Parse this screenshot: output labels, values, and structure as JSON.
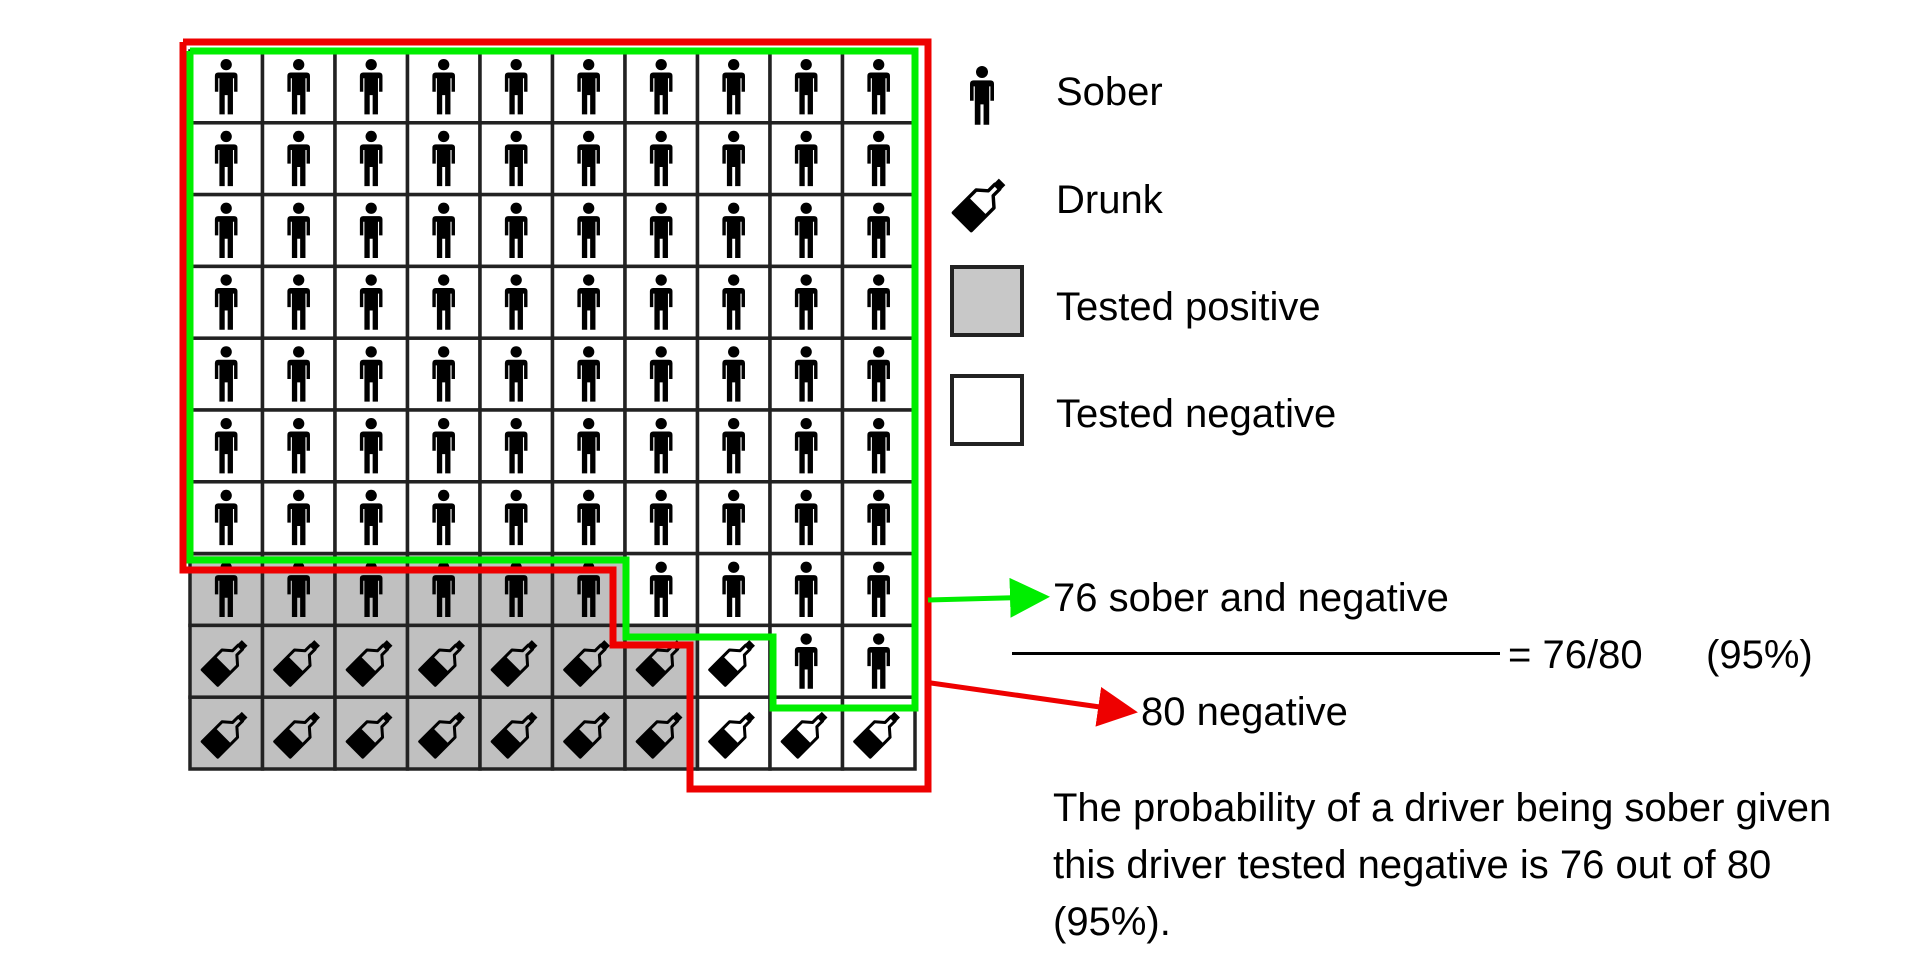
{
  "grid": {
    "rows": 10,
    "cols": 10,
    "colors": {
      "positive": "#c0c0c0",
      "negative": "#ffffff",
      "border": "#222222"
    },
    "row_codes": [
      "SN SN SN SN SN SN SN SN SN SN",
      "SN SN SN SN SN SN SN SN SN SN",
      "SN SN SN SN SN SN SN SN SN SN",
      "SN SN SN SN SN SN SN SN SN SN",
      "SN SN SN SN SN SN SN SN SN SN",
      "SN SN SN SN SN SN SN SN SN SN",
      "SN SN SN SN SN SN SN SN SN SN",
      "SP SP SP SP SP SP SN SN SN SN",
      "DP DP DP DP DP DP DP DN SN SN",
      "DP DP DP DP DP DP DP DN DN DN"
    ],
    "code_legend": {
      "S": "sober-icon",
      "D": "bottle-icon",
      "P": "tested-positive",
      "N": "tested-negative"
    }
  },
  "outlines": {
    "sober_negative_color": "#00ee00",
    "all_negative_color": "#ee0000"
  },
  "legend": {
    "items": [
      {
        "icon": "person-icon",
        "label": "Sober"
      },
      {
        "icon": "bottle-icon",
        "label": "Drunk"
      },
      {
        "icon": "gray-square",
        "label": "Tested positive",
        "color": "#c8c8c8"
      },
      {
        "icon": "white-square",
        "label": "Tested negative",
        "color": "#ffffff"
      }
    ]
  },
  "calculation": {
    "numerator": "76 sober and negative",
    "denominator": "80 negative",
    "result": "= 76/80",
    "percent": "(95%)"
  },
  "explanation": "The probability of a driver being sober given this driver tested negative is 76 out of 80 (95%)."
}
